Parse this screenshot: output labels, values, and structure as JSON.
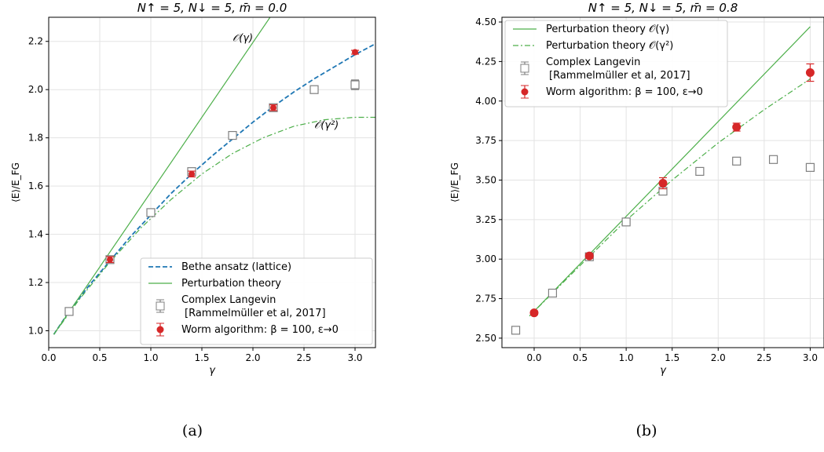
{
  "captions": [
    "(a)",
    "(b)"
  ],
  "chart_data": [
    {
      "type": "line",
      "panel": "a",
      "title": "N↑ = 5, N↓ = 5, m̄ = 0.0",
      "xlabel": "γ",
      "ylabel": "⟨E⟩/E_FG",
      "xlim": [
        0.0,
        3.2
      ],
      "ylim": [
        0.93,
        2.3
      ],
      "xticks": [
        0.0,
        0.5,
        1.0,
        1.5,
        2.0,
        2.5,
        3.0
      ],
      "xtick_labels": [
        "0.0",
        "0.5",
        "1.0",
        "1.5",
        "2.0",
        "2.5",
        "3.0"
      ],
      "yticks": [
        1.0,
        1.2,
        1.4,
        1.6,
        1.8,
        2.0,
        2.2
      ],
      "ytick_labels": [
        "1.0",
        "1.2",
        "1.4",
        "1.6",
        "1.8",
        "2.0",
        "2.2"
      ],
      "grid": true,
      "legend_position": "bottom-right",
      "annotations": [
        {
          "text": "𝒪(γ)",
          "x": 1.8,
          "y": 2.2
        },
        {
          "text": "𝒪(γ²)",
          "x": 2.6,
          "y": 1.84
        }
      ],
      "series": [
        {
          "name": "Bethe ansatz (lattice)",
          "kind": "line",
          "dash": "dashed",
          "color": "#1f77b4",
          "x": [
            0.05,
            0.2,
            0.4,
            0.6,
            0.8,
            1.0,
            1.2,
            1.4,
            1.6,
            1.8,
            2.0,
            2.2,
            2.4,
            2.6,
            2.8,
            3.0,
            3.2
          ],
          "y": [
            0.985,
            1.08,
            1.19,
            1.29,
            1.39,
            1.48,
            1.57,
            1.65,
            1.725,
            1.795,
            1.865,
            1.93,
            1.99,
            2.045,
            2.095,
            2.145,
            2.19
          ]
        },
        {
          "name": "Perturbation theory",
          "kind": "line",
          "dash": "solid",
          "color": "#4daf4a",
          "x": [
            0.05,
            2.2
          ],
          "y": [
            0.985,
            2.32
          ]
        },
        {
          "name": "",
          "kind": "line",
          "dash": "dashdot",
          "color": "#4daf4a",
          "x": [
            0.05,
            0.3,
            0.6,
            0.9,
            1.2,
            1.5,
            1.8,
            2.1,
            2.4,
            2.7,
            3.0,
            3.2
          ],
          "y": [
            0.985,
            1.13,
            1.285,
            1.425,
            1.545,
            1.65,
            1.735,
            1.8,
            1.848,
            1.875,
            1.885,
            1.885
          ]
        },
        {
          "name": "Complex Langevin",
          "name2": "[Rammelmüller et al, 2017]",
          "kind": "square",
          "color": "#808080",
          "x": [
            0.2,
            0.6,
            1.0,
            1.4,
            1.8,
            2.2,
            2.6,
            3.0
          ],
          "y": [
            1.08,
            1.295,
            1.49,
            1.66,
            1.81,
            1.925,
            2.0,
            2.02
          ],
          "err": [
            0.015,
            0.015,
            0.015,
            0.015,
            0.015,
            0.015,
            0.015,
            0.02
          ]
        },
        {
          "name": "Worm algorithm: β = 100, ε→0",
          "kind": "circle",
          "color": "#d62728",
          "x": [
            0.6,
            1.4,
            2.2,
            3.0
          ],
          "y": [
            1.295,
            1.65,
            1.925,
            2.155
          ],
          "err": [
            0.012,
            0.012,
            0.012,
            0.008
          ]
        }
      ]
    },
    {
      "type": "line",
      "panel": "b",
      "title": "N↑ = 5, N↓ = 5, m̄ = 0.8",
      "xlabel": "γ",
      "ylabel": "⟨E⟩/E_FG",
      "xlim": [
        -0.35,
        3.15
      ],
      "ylim": [
        2.44,
        4.53
      ],
      "xticks": [
        0.0,
        0.5,
        1.0,
        1.5,
        2.0,
        2.5,
        3.0
      ],
      "xtick_labels": [
        "0.0",
        "0.5",
        "1.0",
        "1.5",
        "2.0",
        "2.5",
        "3.0"
      ],
      "yticks": [
        2.5,
        2.75,
        3.0,
        3.25,
        3.5,
        3.75,
        4.0,
        4.25,
        4.5
      ],
      "ytick_labels": [
        "2.50",
        "2.75",
        "3.00",
        "3.25",
        "3.50",
        "3.75",
        "4.00",
        "4.25",
        "4.50"
      ],
      "grid": true,
      "legend_position": "top-left",
      "series": [
        {
          "name": "Perturbation theory 𝒪(γ)",
          "kind": "line",
          "dash": "solid",
          "color": "#4daf4a",
          "x": [
            -0.05,
            3.0
          ],
          "y": [
            2.64,
            4.47
          ]
        },
        {
          "name": "Perturbation theory 𝒪(γ²)",
          "kind": "line",
          "dash": "dashdot",
          "color": "#4daf4a",
          "x": [
            -0.05,
            0.5,
            1.0,
            1.5,
            2.0,
            2.5,
            3.0
          ],
          "y": [
            2.64,
            2.96,
            3.245,
            3.5,
            3.735,
            3.945,
            4.14
          ]
        },
        {
          "name": "Complex Langevin",
          "name2": "[Rammelmüller et al, 2017]",
          "kind": "square",
          "color": "#808080",
          "x": [
            -0.2,
            0.2,
            0.6,
            1.0,
            1.4,
            1.8,
            2.2,
            2.6,
            3.0
          ],
          "y": [
            2.55,
            2.785,
            3.015,
            3.235,
            3.43,
            3.555,
            3.62,
            3.63,
            3.58
          ],
          "err": [
            0.015,
            0.015,
            0.015,
            0.015,
            0.02,
            0.02,
            0.02,
            0.02,
            0.02
          ]
        },
        {
          "name": "Worm algorithm: β = 100, ε→0",
          "kind": "circle",
          "color": "#d62728",
          "x": [
            0.0,
            0.6,
            1.4,
            2.2,
            3.0
          ],
          "y": [
            2.66,
            3.02,
            3.48,
            3.835,
            4.18
          ],
          "err": [
            0.012,
            0.015,
            0.035,
            0.025,
            0.055
          ]
        }
      ]
    }
  ]
}
